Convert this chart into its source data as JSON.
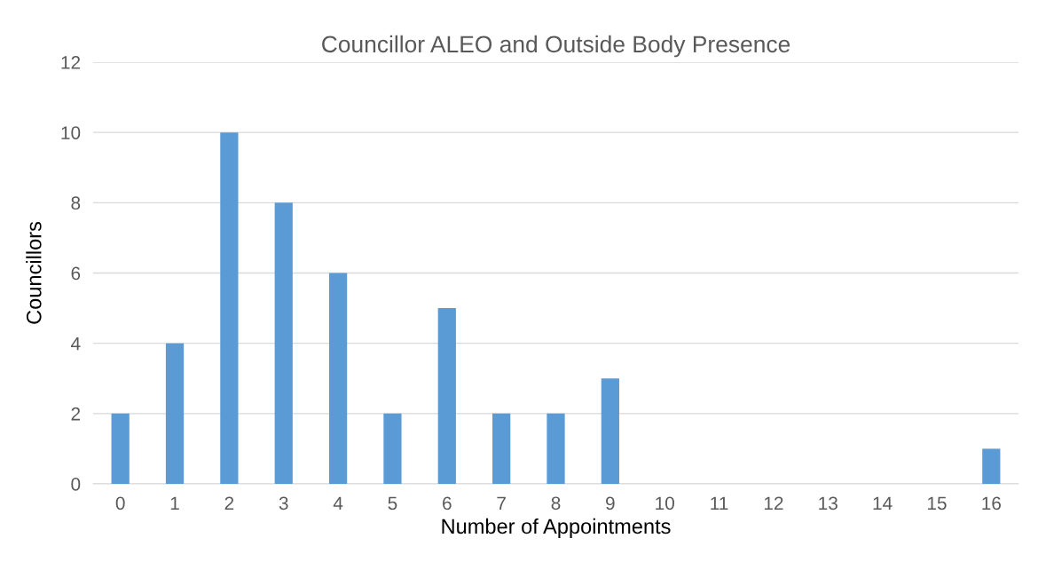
{
  "chart_data": {
    "type": "bar",
    "title": "Councillor ALEO and Outside Body Presence",
    "xlabel": "Number of Appointments",
    "ylabel": "Councillors",
    "categories": [
      "0",
      "1",
      "2",
      "3",
      "4",
      "5",
      "6",
      "7",
      "8",
      "9",
      "10",
      "11",
      "12",
      "13",
      "14",
      "15",
      "16"
    ],
    "values": [
      2,
      4,
      10,
      8,
      6,
      2,
      5,
      2,
      2,
      3,
      0,
      0,
      0,
      0,
      0,
      0,
      1
    ],
    "color": "#5b9bd5",
    "ylim": [
      0,
      12
    ],
    "yticks": [
      0,
      2,
      4,
      6,
      8,
      10,
      12
    ],
    "grid": "y"
  }
}
